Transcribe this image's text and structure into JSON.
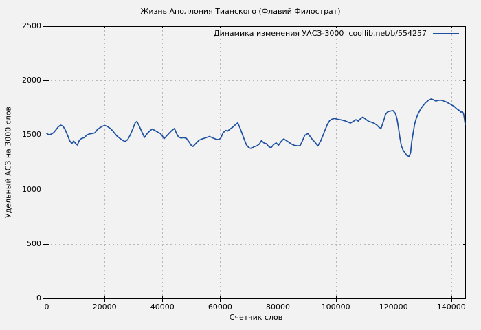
{
  "chart_data": {
    "type": "line",
    "title": "Жизнь Аполлония Тианского (Флавий Филострат)",
    "xlabel": "Счетчик слов",
    "ylabel": "Удельный АСЗ на 3000 слов",
    "xlim": [
      0,
      144800
    ],
    "ylim": [
      0,
      2500
    ],
    "x_ticks": [
      0,
      20000,
      40000,
      60000,
      80000,
      100000,
      120000,
      140000
    ],
    "y_ticks": [
      0,
      500,
      1000,
      1500,
      2000,
      2500
    ],
    "grid": true,
    "legend_position": "top-right-inside",
    "colors": {
      "background": "#f2f2f2",
      "line": "#1e50a2",
      "grid": "#b8b8b8",
      "border": "#000000",
      "text": "#000000"
    },
    "series": [
      {
        "name": "Динамика изменения УАСЗ-3000  coollib.net/b/554257",
        "points": [
          [
            0,
            1515
          ],
          [
            800,
            1500
          ],
          [
            1600,
            1508
          ],
          [
            2400,
            1522
          ],
          [
            3200,
            1548
          ],
          [
            4000,
            1575
          ],
          [
            4800,
            1590
          ],
          [
            5600,
            1582
          ],
          [
            6400,
            1548
          ],
          [
            7200,
            1498
          ],
          [
            8000,
            1445
          ],
          [
            8700,
            1422
          ],
          [
            9300,
            1445
          ],
          [
            10000,
            1422
          ],
          [
            10600,
            1408
          ],
          [
            11300,
            1452
          ],
          [
            12000,
            1468
          ],
          [
            13000,
            1476
          ],
          [
            13900,
            1500
          ],
          [
            14800,
            1510
          ],
          [
            15800,
            1514
          ],
          [
            16700,
            1520
          ],
          [
            17500,
            1550
          ],
          [
            18300,
            1565
          ],
          [
            19200,
            1580
          ],
          [
            20100,
            1588
          ],
          [
            21000,
            1578
          ],
          [
            21900,
            1562
          ],
          [
            22800,
            1540
          ],
          [
            23600,
            1512
          ],
          [
            24400,
            1488
          ],
          [
            25300,
            1470
          ],
          [
            26200,
            1452
          ],
          [
            27100,
            1440
          ],
          [
            28000,
            1458
          ],
          [
            28900,
            1500
          ],
          [
            29800,
            1556
          ],
          [
            30600,
            1612
          ],
          [
            31200,
            1625
          ],
          [
            31900,
            1588
          ],
          [
            32800,
            1535
          ],
          [
            33800,
            1478
          ],
          [
            34800,
            1515
          ],
          [
            35700,
            1538
          ],
          [
            36500,
            1555
          ],
          [
            37400,
            1542
          ],
          [
            38300,
            1528
          ],
          [
            39300,
            1514
          ],
          [
            40100,
            1488
          ],
          [
            40600,
            1466
          ],
          [
            41400,
            1490
          ],
          [
            42300,
            1515
          ],
          [
            43200,
            1540
          ],
          [
            44200,
            1560
          ],
          [
            44900,
            1515
          ],
          [
            45600,
            1482
          ],
          [
            46500,
            1472
          ],
          [
            47400,
            1476
          ],
          [
            48300,
            1470
          ],
          [
            49200,
            1438
          ],
          [
            50000,
            1405
          ],
          [
            50600,
            1395
          ],
          [
            51500,
            1420
          ],
          [
            52700,
            1452
          ],
          [
            53800,
            1464
          ],
          [
            55000,
            1474
          ],
          [
            56300,
            1487
          ],
          [
            57400,
            1474
          ],
          [
            58500,
            1462
          ],
          [
            59400,
            1458
          ],
          [
            60200,
            1470
          ],
          [
            61000,
            1520
          ],
          [
            61900,
            1542
          ],
          [
            62600,
            1536
          ],
          [
            63500,
            1556
          ],
          [
            64300,
            1570
          ],
          [
            65200,
            1592
          ],
          [
            66100,
            1612
          ],
          [
            66800,
            1570
          ],
          [
            67500,
            1520
          ],
          [
            68300,
            1462
          ],
          [
            69100,
            1410
          ],
          [
            70000,
            1382
          ],
          [
            70800,
            1376
          ],
          [
            71700,
            1392
          ],
          [
            72700,
            1400
          ],
          [
            73600,
            1418
          ],
          [
            74300,
            1448
          ],
          [
            75100,
            1428
          ],
          [
            76000,
            1420
          ],
          [
            76900,
            1392
          ],
          [
            77600,
            1383
          ],
          [
            78500,
            1412
          ],
          [
            79400,
            1428
          ],
          [
            80200,
            1406
          ],
          [
            81100,
            1440
          ],
          [
            82000,
            1464
          ],
          [
            82900,
            1448
          ],
          [
            83700,
            1435
          ],
          [
            84500,
            1420
          ],
          [
            85600,
            1406
          ],
          [
            86800,
            1400
          ],
          [
            87700,
            1402
          ],
          [
            88500,
            1448
          ],
          [
            89300,
            1498
          ],
          [
            90400,
            1513
          ],
          [
            91200,
            1484
          ],
          [
            92000,
            1456
          ],
          [
            92900,
            1432
          ],
          [
            93800,
            1399
          ],
          [
            94800,
            1446
          ],
          [
            95600,
            1498
          ],
          [
            96400,
            1551
          ],
          [
            97100,
            1597
          ],
          [
            97900,
            1631
          ],
          [
            98700,
            1646
          ],
          [
            99600,
            1652
          ],
          [
            100600,
            1645
          ],
          [
            101500,
            1641
          ],
          [
            102500,
            1635
          ],
          [
            103400,
            1628
          ],
          [
            104300,
            1618
          ],
          [
            105100,
            1610
          ],
          [
            106100,
            1625
          ],
          [
            107000,
            1641
          ],
          [
            107800,
            1628
          ],
          [
            108600,
            1650
          ],
          [
            109400,
            1665
          ],
          [
            110400,
            1645
          ],
          [
            111400,
            1625
          ],
          [
            112300,
            1618
          ],
          [
            113300,
            1608
          ],
          [
            114200,
            1592
          ],
          [
            115100,
            1568
          ],
          [
            115700,
            1562
          ],
          [
            116500,
            1625
          ],
          [
            117300,
            1692
          ],
          [
            118000,
            1713
          ],
          [
            118900,
            1720
          ],
          [
            119800,
            1724
          ],
          [
            120600,
            1700
          ],
          [
            121200,
            1650
          ],
          [
            121700,
            1570
          ],
          [
            122200,
            1478
          ],
          [
            122700,
            1400
          ],
          [
            123300,
            1362
          ],
          [
            124000,
            1335
          ],
          [
            124700,
            1310
          ],
          [
            125400,
            1304
          ],
          [
            125900,
            1335
          ],
          [
            126300,
            1440
          ],
          [
            126800,
            1520
          ],
          [
            127300,
            1600
          ],
          [
            127900,
            1655
          ],
          [
            128600,
            1700
          ],
          [
            129400,
            1740
          ],
          [
            130300,
            1772
          ],
          [
            131200,
            1800
          ],
          [
            132200,
            1820
          ],
          [
            133000,
            1831
          ],
          [
            133800,
            1824
          ],
          [
            134600,
            1812
          ],
          [
            135500,
            1818
          ],
          [
            136400,
            1820
          ],
          [
            137300,
            1812
          ],
          [
            138200,
            1804
          ],
          [
            139200,
            1790
          ],
          [
            140100,
            1776
          ],
          [
            141000,
            1762
          ],
          [
            141900,
            1740
          ],
          [
            142700,
            1726
          ],
          [
            143300,
            1710
          ],
          [
            143800,
            1714
          ],
          [
            144200,
            1698
          ],
          [
            144500,
            1655
          ],
          [
            144800,
            1597
          ]
        ]
      }
    ]
  }
}
